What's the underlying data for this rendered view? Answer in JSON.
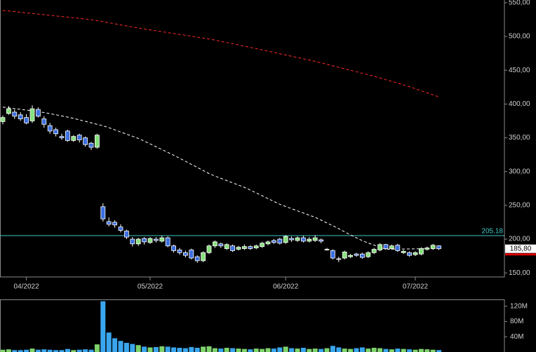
{
  "chart_data": [
    {
      "type": "candlestick",
      "categories": [
        null,
        null,
        null,
        null,
        "04/2022",
        null,
        null,
        null,
        null,
        null,
        null,
        null,
        null,
        null,
        null,
        null,
        null,
        null,
        null,
        null,
        null,
        null,
        null,
        null,
        null,
        "05/2022",
        null,
        null,
        null,
        null,
        null,
        null,
        null,
        null,
        null,
        null,
        null,
        null,
        null,
        null,
        null,
        null,
        null,
        null,
        null,
        null,
        null,
        null,
        "06/2022",
        null,
        null,
        null,
        null,
        null,
        null,
        null,
        null,
        null,
        null,
        null,
        null,
        null,
        null,
        null,
        null,
        null,
        null,
        null,
        null,
        null,
        "07/2022",
        null,
        null,
        null,
        null
      ],
      "open": [
        374,
        386,
        388,
        384,
        380,
        375,
        392,
        378,
        368,
        362,
        352,
        360,
        346,
        354,
        350,
        342,
        336,
        248,
        226,
        225,
        218,
        212,
        200,
        193,
        201,
        195,
        200,
        197,
        202,
        190,
        184,
        180,
        184,
        174,
        168,
        180,
        190,
        193,
        186,
        190,
        185,
        186,
        189,
        187,
        189,
        193,
        198,
        200,
        195,
        201,
        198,
        202,
        197,
        198,
        199,
        184,
        183,
        171,
        172,
        174,
        178,
        178,
        174,
        180,
        184,
        192,
        186,
        191,
        180,
        180,
        177,
        178,
        185,
        186,
        190
      ],
      "high": [
        383,
        397,
        392,
        388,
        385,
        398,
        395,
        382,
        372,
        365,
        356,
        362,
        354,
        356,
        352,
        344,
        356,
        253,
        232,
        228,
        222,
        214,
        203,
        202,
        203,
        203,
        203,
        205,
        204,
        192,
        187,
        183,
        186,
        176,
        182,
        192,
        198,
        195,
        194,
        192,
        190,
        192,
        191,
        192,
        196,
        198,
        200,
        202,
        206,
        204,
        204,
        205,
        203,
        206,
        201,
        187,
        185,
        174,
        183,
        178,
        180,
        180,
        182,
        187,
        194,
        193,
        192,
        193,
        184,
        182,
        182,
        188,
        189,
        193,
        191
      ],
      "low": [
        370,
        384,
        378,
        375,
        370,
        372,
        380,
        365,
        356,
        352,
        347,
        344,
        344,
        343,
        337,
        332,
        334,
        226,
        219,
        217,
        210,
        200,
        189,
        190,
        192,
        193,
        195,
        195,
        188,
        180,
        177,
        173,
        170,
        165,
        166,
        178,
        187,
        187,
        184,
        181,
        183,
        184,
        184,
        185,
        187,
        191,
        193,
        192,
        193,
        196,
        196,
        195,
        195,
        196,
        194,
        183,
        170,
        166,
        170,
        172,
        174,
        171,
        172,
        178,
        182,
        184,
        184,
        181,
        178,
        174,
        175,
        176,
        183,
        184,
        184
      ],
      "close": [
        380,
        393,
        382,
        378,
        372,
        393,
        382,
        370,
        360,
        356,
        350,
        346,
        352,
        347,
        340,
        336,
        354,
        230,
        222,
        221,
        213,
        203,
        193,
        200,
        196,
        201,
        198,
        202,
        190,
        183,
        180,
        176,
        172,
        168,
        180,
        190,
        196,
        190,
        192,
        183,
        188,
        189,
        186,
        190,
        194,
        196,
        195,
        194,
        204,
        199,
        202,
        197,
        200,
        202,
        197,
        185,
        172,
        170,
        181,
        176,
        176,
        173,
        180,
        185,
        192,
        186,
        190,
        183,
        182,
        176,
        180,
        186,
        187,
        191,
        185.8
      ],
      "up_color": "#86e07c",
      "down_color": "#3c6fe0",
      "moving_averages": [
        {
          "color": "#ffffff",
          "values": [
            395.5,
            394.3,
            393.2,
            392.1,
            391,
            389.9,
            388.7,
            387.4,
            385.8,
            384.1,
            382.4,
            380.7,
            378.8,
            376.6,
            374.4,
            372.2,
            370,
            367.8,
            365,
            361.8,
            358.6,
            355.4,
            352.3,
            349.1,
            345.2,
            341,
            336.8,
            332.6,
            328.4,
            324.2,
            319.8,
            315.2,
            310.7,
            306.2,
            301.6,
            297.1,
            293.4,
            290.1,
            286.7,
            283.4,
            280,
            276.6,
            272.6,
            268.4,
            264.2,
            260,
            255.8,
            251.6,
            248.3,
            245.1,
            241.9,
            238.7,
            235.5,
            232.3,
            228.2,
            224,
            219.8,
            215.5,
            210.8,
            206.2,
            202,
            197.8,
            194.2,
            191.2,
            188.1,
            185,
            185.2,
            185.3,
            185.4,
            185.5,
            185.6,
            185.7,
            185.8,
            185.9,
            186
          ]
        },
        {
          "color": "#ff2a2a",
          "values": [
            538.6,
            537.7,
            536.8,
            535.9,
            535,
            534,
            533.1,
            532.2,
            531.3,
            530.4,
            529.5,
            528.6,
            527.7,
            526.8,
            525.9,
            525,
            523.4,
            521.9,
            520.3,
            518.8,
            517.2,
            515.6,
            514.1,
            512.5,
            511.1,
            509.8,
            508.4,
            507.1,
            505.7,
            504.4,
            503,
            501.7,
            500.4,
            499,
            497.7,
            496.3,
            494.6,
            492.8,
            491,
            489.2,
            487.4,
            485.6,
            483.8,
            482,
            480.2,
            478.3,
            476.4,
            474.5,
            472.6,
            470.7,
            468.9,
            467,
            465.1,
            463.2,
            461,
            458.8,
            456.6,
            454.4,
            452.2,
            450,
            447.8,
            445.6,
            443.4,
            441,
            438.5,
            436,
            433.5,
            431,
            428.4,
            425.7,
            422.7,
            419.7,
            416.6,
            413.6,
            410.6
          ]
        }
      ],
      "hline": {
        "value": 205.18,
        "color": "#3ec8c8"
      },
      "last_price": {
        "value": 185.8,
        "label": "185,80"
      },
      "ylim": [
        144,
        554
      ],
      "yticks": [
        {
          "value": 150,
          "label": "150,00"
        },
        {
          "value": 200,
          "label": "200,00"
        },
        {
          "value": 250,
          "label": "250,00"
        },
        {
          "value": 300,
          "label": "300,00"
        },
        {
          "value": 350,
          "label": "350,00"
        },
        {
          "value": 400,
          "label": "400,00"
        },
        {
          "value": 450,
          "label": "450,00"
        },
        {
          "value": 500,
          "label": "500,00"
        },
        {
          "value": 550,
          "label": "550,00"
        }
      ]
    },
    {
      "type": "volume",
      "values": [
        6,
        7,
        5,
        5,
        6,
        9,
        6,
        7,
        6,
        5,
        5,
        8,
        5,
        6,
        7,
        6,
        20,
        133,
        51,
        36,
        29,
        24,
        21,
        18,
        14,
        12,
        13,
        15,
        14,
        12,
        11,
        10,
        13,
        11,
        14,
        15,
        10,
        9,
        11,
        10,
        9,
        8,
        7,
        9,
        8,
        10,
        9,
        12,
        14,
        10,
        9,
        11,
        8,
        9,
        8,
        10,
        16,
        12,
        9,
        8,
        10,
        12,
        9,
        11,
        10,
        8,
        7,
        9,
        8,
        7,
        6,
        8,
        7,
        6,
        5
      ],
      "up_color": "#7ed36c",
      "down_color": "#3aa6ee",
      "ylim": [
        0,
        136
      ],
      "yticks": [
        {
          "value": 40,
          "label": "40M"
        },
        {
          "value": 80,
          "label": "80M"
        },
        {
          "value": 120,
          "label": "120M"
        }
      ]
    }
  ]
}
